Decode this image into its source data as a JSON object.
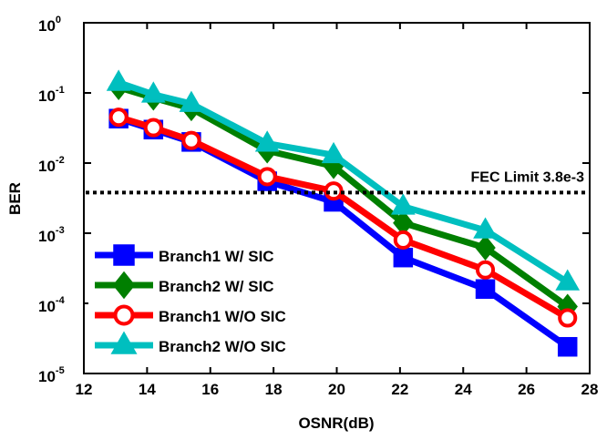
{
  "chart_data": {
    "type": "line",
    "title": "",
    "xlabel": "OSNR(dB)",
    "ylabel": "BER",
    "xlim": [
      12,
      28
    ],
    "ylim": [
      1e-05,
      1
    ],
    "y_scale": "log",
    "xticks": [
      "12",
      "14",
      "16",
      "18",
      "20",
      "22",
      "24",
      "26",
      "28"
    ],
    "yticks": [
      {
        "base": "10",
        "exp": "0"
      },
      {
        "base": "10",
        "exp": "-1"
      },
      {
        "base": "10",
        "exp": "-2"
      },
      {
        "base": "10",
        "exp": "-3"
      },
      {
        "base": "10",
        "exp": "-4"
      },
      {
        "base": "10",
        "exp": "-5"
      }
    ],
    "x": [
      13.1,
      14.2,
      15.4,
      17.8,
      19.9,
      22.1,
      24.7,
      27.3
    ],
    "series": [
      {
        "name": "Branch1 W/ SIC",
        "color": "#0000ff",
        "marker": "square",
        "values": [
          0.043,
          0.03,
          0.02,
          0.0055,
          0.0028,
          0.00045,
          0.00016,
          2.4e-05
        ]
      },
      {
        "name": "Branch2 W/ SIC",
        "color": "#007f00",
        "marker": "diamond",
        "values": [
          0.12,
          0.085,
          0.06,
          0.015,
          0.009,
          0.0014,
          0.00062,
          9e-05
        ]
      },
      {
        "name": "Branch1 W/O SIC",
        "color": "#ff0000",
        "marker": "circle",
        "values": [
          0.045,
          0.032,
          0.021,
          0.0064,
          0.004,
          0.0008,
          0.0003,
          6.2e-05
        ]
      },
      {
        "name": "Branch2 W/O SIC",
        "color": "#00bfbf",
        "marker": "triangle",
        "values": [
          0.14,
          0.095,
          0.07,
          0.019,
          0.013,
          0.0024,
          0.0011,
          0.0002
        ]
      }
    ],
    "reference_line": {
      "label": "FEC Limit 3.8e-3",
      "value": 0.0038,
      "style": "dotted"
    },
    "legend_position": "bottom-left",
    "grid": false
  }
}
